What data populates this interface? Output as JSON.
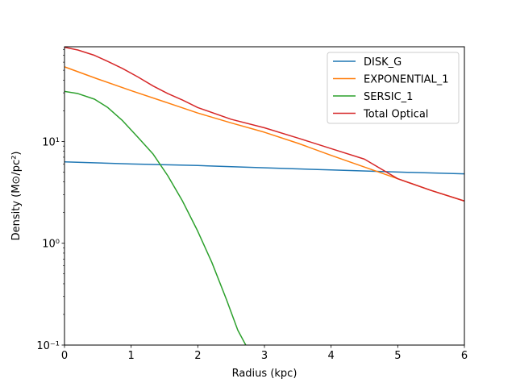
{
  "chart_data": {
    "type": "line",
    "xlabel": "Radius (kpc)",
    "ylabel": "Density (M⊙/pc²)",
    "xlim": [
      0,
      6
    ],
    "ylim": [
      0.1,
      85
    ],
    "yscale": "log",
    "x_ticks": [
      0,
      1,
      2,
      3,
      4,
      5,
      6
    ],
    "x_tick_labels": [
      "0",
      "1",
      "2",
      "3",
      "4",
      "5",
      "6"
    ],
    "y_ticks": [
      0.1,
      1,
      10
    ],
    "y_tick_labels": [
      "10⁻¹",
      "10⁰",
      "10¹"
    ],
    "grid": false,
    "legend_position": "top-right",
    "series": [
      {
        "name": "DISK_G",
        "color": "#1f77b4",
        "x": [
          0,
          1,
          2,
          3,
          4,
          5,
          6
        ],
        "y": [
          6.3,
          6.0,
          5.8,
          5.5,
          5.25,
          5.0,
          4.8
        ]
      },
      {
        "name": "EXPONENTIAL_1",
        "color": "#ff7f0e",
        "x": [
          0,
          0.5,
          1,
          1.5,
          2,
          2.5,
          3,
          3.5,
          4,
          4.5,
          5,
          5.5,
          6
        ],
        "y": [
          54,
          41,
          31.5,
          24.5,
          19,
          15.2,
          12.3,
          9.6,
          7.3,
          5.6,
          4.3,
          3.3,
          2.6
        ]
      },
      {
        "name": "SERSIC_1",
        "color": "#2ca02c",
        "x": [
          0,
          0.2,
          0.45,
          0.65,
          0.87,
          1.1,
          1.33,
          1.55,
          1.77,
          1.99,
          2.21,
          2.43,
          2.6,
          2.72
        ],
        "y": [
          31,
          29.5,
          26,
          21.5,
          16,
          11,
          7.5,
          4.6,
          2.6,
          1.35,
          0.65,
          0.28,
          0.14,
          0.1
        ]
      },
      {
        "name": "Total Optical",
        "color": "#d62728",
        "x": [
          0,
          0.2,
          0.45,
          0.65,
          0.87,
          1.1,
          1.33,
          1.55,
          1.77,
          2,
          2.5,
          3,
          3.5,
          4,
          4.5,
          5,
          5.5,
          6
        ],
        "y": [
          84,
          79,
          70,
          61,
          52,
          43,
          35,
          29.5,
          25.5,
          21.5,
          16.5,
          13.6,
          10.8,
          8.5,
          6.7,
          4.3,
          3.3,
          2.6
        ]
      }
    ]
  }
}
